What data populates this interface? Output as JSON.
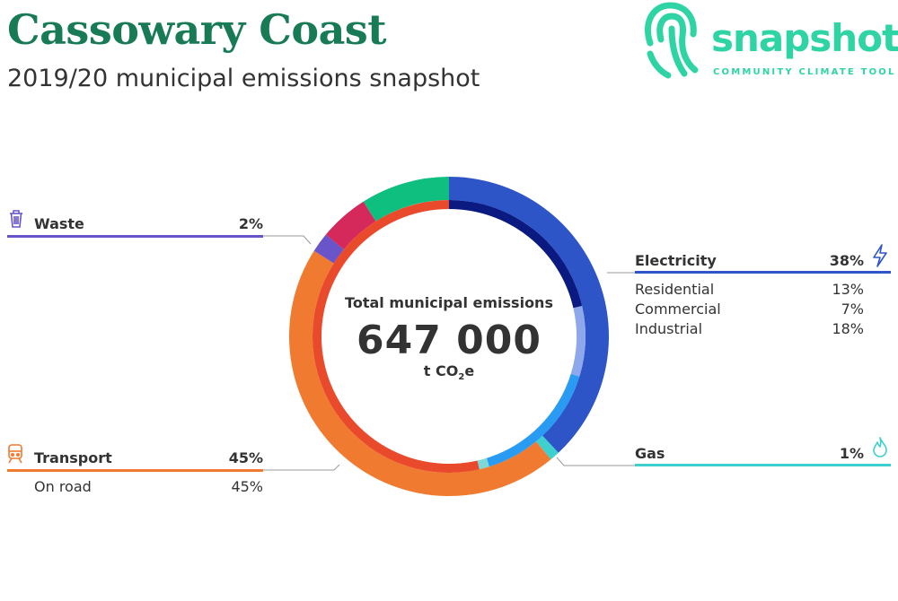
{
  "header": {
    "title": "Cassowary Coast",
    "subtitle": "2019/20 municipal emissions snapshot"
  },
  "logo": {
    "word": "snapshot",
    "tagline": "COMMUNITY CLIMATE TOOL",
    "color": "#2fd4a4"
  },
  "center": {
    "label": "Total municipal emissions",
    "value": "647 000",
    "unit_prefix": "t CO",
    "unit_sub": "2",
    "unit_suffix": "e"
  },
  "categories": {
    "waste": {
      "label": "Waste",
      "pct": "2%",
      "color": "#6a54c9",
      "icon": "trash-icon"
    },
    "transport": {
      "label": "Transport",
      "pct": "45%",
      "color": "#f07a30",
      "icon": "train-icon",
      "sub": [
        {
          "label": "On road",
          "pct": "45%"
        }
      ]
    },
    "electricity": {
      "label": "Electricity",
      "pct": "38%",
      "color": "#2d55c8",
      "icon": "lightning-icon",
      "sub": [
        {
          "label": "Residential",
          "pct": "13%"
        },
        {
          "label": "Commercial",
          "pct": "7%"
        },
        {
          "label": "Industrial",
          "pct": "18%"
        }
      ]
    },
    "gas": {
      "label": "Gas",
      "pct": "1%",
      "color": "#3ecfcf",
      "icon": "flame-icon"
    }
  },
  "chart_data": {
    "type": "pie",
    "style": "donut",
    "total": 647000,
    "unit": "t CO2e",
    "series": [
      {
        "name": "Electricity",
        "value": 38,
        "color": "#2d55c8"
      },
      {
        "name": "Gas",
        "value": 1,
        "color": "#3ecfcf"
      },
      {
        "name": "Transport",
        "value": 45,
        "color": "#f07a30"
      },
      {
        "name": "Waste",
        "value": 2,
        "color": "#6a54c9"
      },
      {
        "name": "",
        "value": 5,
        "color": "#d4295a"
      },
      {
        "name": "",
        "value": 9,
        "color": "#0fbf7f"
      }
    ],
    "inner_series": [
      {
        "name": "Industrial",
        "value": 18,
        "color": "#0a1a80"
      },
      {
        "name": "Commercial",
        "value": 7,
        "color": "#8ea8ec"
      },
      {
        "name": "Residential",
        "value": 13,
        "color": "#2a9bf3"
      },
      {
        "name": "Gas",
        "value": 1,
        "color": "#7fd8d8"
      },
      {
        "name": "On road",
        "value": 45,
        "color": "#ea4a2c"
      }
    ]
  }
}
